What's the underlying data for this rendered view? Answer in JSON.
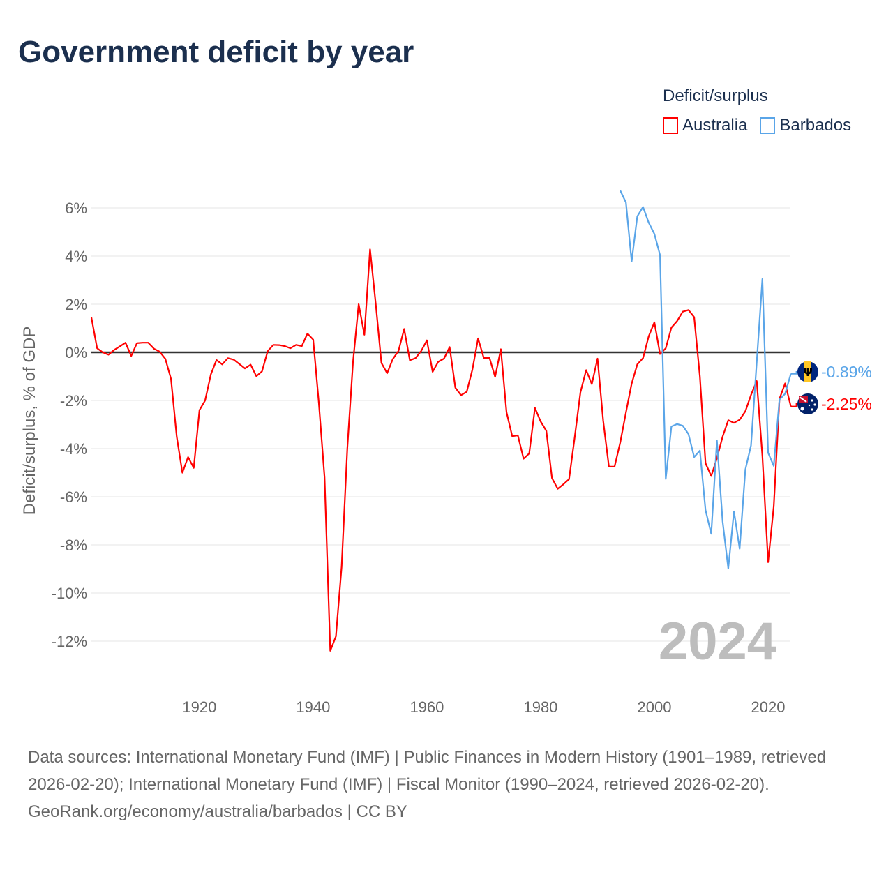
{
  "title": "Government deficit by year",
  "legend": {
    "title": "Deficit/surplus",
    "items": [
      {
        "label": "Australia",
        "color": "#ff0000"
      },
      {
        "label": "Barbados",
        "color": "#5aa5e8"
      }
    ]
  },
  "chart_data": {
    "type": "line",
    "title": "Government deficit by year",
    "xlabel": "",
    "ylabel": "Deficit/surplus, % of GDP",
    "xlim": [
      1901,
      2024
    ],
    "ylim": [
      -13.2,
      7.0
    ],
    "x_ticks": [
      1920,
      1940,
      1960,
      1980,
      2000,
      2020
    ],
    "x_tick_labels": [
      "1920",
      "1940",
      "1960",
      "1980",
      "2000",
      "2020"
    ],
    "y_ticks": [
      6,
      4,
      2,
      0,
      -2,
      -4,
      -6,
      -8,
      -10,
      -12
    ],
    "y_tick_labels": [
      "6%",
      "4%",
      "2%",
      "0%",
      "-2%",
      "-4%",
      "-6%",
      "-8%",
      "-10%",
      "-12%"
    ],
    "grid": true,
    "legend_position": "top-right",
    "year_watermark": "2024",
    "series": [
      {
        "name": "Australia",
        "color": "#ff0000",
        "start_year": 1901,
        "end_label": "-2.25%",
        "values": [
          1.45,
          0.17,
          0.0,
          -0.1,
          0.1,
          0.25,
          0.4,
          -0.15,
          0.38,
          0.4,
          0.4,
          0.15,
          0.03,
          -0.27,
          -1.1,
          -3.5,
          -5.0,
          -4.35,
          -4.8,
          -2.4,
          -2.0,
          -0.92,
          -0.32,
          -0.5,
          -0.24,
          -0.3,
          -0.48,
          -0.67,
          -0.51,
          -0.99,
          -0.79,
          0.05,
          0.31,
          0.3,
          0.26,
          0.17,
          0.31,
          0.26,
          0.78,
          0.53,
          -2.1,
          -5.2,
          -12.4,
          -11.8,
          -8.9,
          -4.0,
          -0.4,
          2.0,
          0.73,
          4.28,
          2.0,
          -0.44,
          -0.87,
          -0.28,
          0.06,
          0.97,
          -0.33,
          -0.24,
          0.06,
          0.5,
          -0.81,
          -0.39,
          -0.26,
          0.22,
          -1.47,
          -1.78,
          -1.64,
          -0.72,
          0.58,
          -0.23,
          -0.23,
          -1.02,
          0.13,
          -2.48,
          -3.48,
          -3.45,
          -4.42,
          -4.2,
          -2.31,
          -2.87,
          -3.26,
          -5.22,
          -5.67,
          -5.48,
          -5.27,
          -3.5,
          -1.66,
          -0.74,
          -1.32,
          -0.26,
          -2.84,
          -4.75,
          -4.75,
          -3.74,
          -2.5,
          -1.3,
          -0.5,
          -0.24,
          0.66,
          1.25,
          -0.07,
          0.17,
          1.03,
          1.3,
          1.69,
          1.76,
          1.46,
          -1.0,
          -4.61,
          -5.14,
          -4.4,
          -3.5,
          -2.82,
          -2.93,
          -2.8,
          -2.45,
          -1.77,
          -1.19,
          -4.3,
          -8.72,
          -6.4,
          -1.93,
          -1.29,
          -2.25
        ]
      },
      {
        "name": "Barbados",
        "color": "#5aa5e8",
        "start_year": 1994,
        "end_label": "-0.89%",
        "values": [
          6.72,
          6.23,
          3.78,
          5.65,
          6.04,
          5.39,
          4.92,
          4.04,
          -5.26,
          -3.08,
          -2.98,
          -3.05,
          -3.4,
          -4.35,
          -4.08,
          -6.56,
          -7.54,
          -3.66,
          -7.03,
          -8.98,
          -6.61,
          -8.16,
          -4.87,
          -3.87,
          -0.4,
          3.05,
          -4.17,
          -4.72,
          -1.96,
          -1.72,
          -0.89
        ]
      }
    ]
  },
  "footer": {
    "sources": "Data sources: International Monetary Fund (IMF) | Public Finances in Modern History (1901–1989, retrieved 2026-02-20); International Monetary Fund (IMF) | Fiscal Monitor (1990–2024, retrieved 2026-02-20).",
    "credit": "GeoRank.org/economy/australia/barbados | CC BY"
  }
}
